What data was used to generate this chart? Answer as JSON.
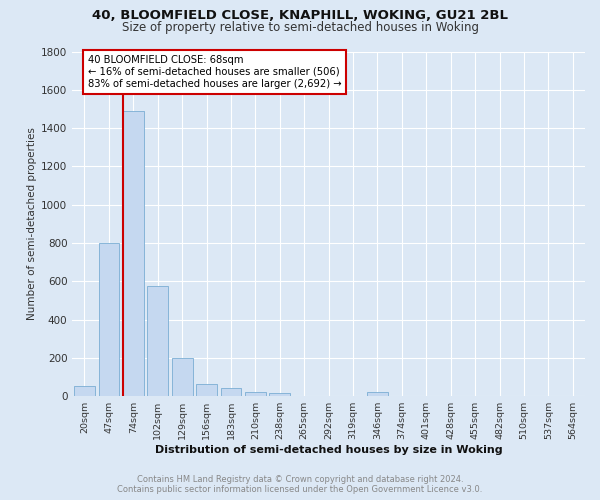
{
  "title1": "40, BLOOMFIELD CLOSE, KNAPHILL, WOKING, GU21 2BL",
  "title2": "Size of property relative to semi-detached houses in Woking",
  "xlabel": "Distribution of semi-detached houses by size in Woking",
  "ylabel": "Number of semi-detached properties",
  "bar_labels": [
    "20sqm",
    "47sqm",
    "74sqm",
    "102sqm",
    "129sqm",
    "156sqm",
    "183sqm",
    "210sqm",
    "238sqm",
    "265sqm",
    "292sqm",
    "319sqm",
    "346sqm",
    "374sqm",
    "401sqm",
    "428sqm",
    "455sqm",
    "482sqm",
    "510sqm",
    "537sqm",
    "564sqm"
  ],
  "bar_values": [
    55,
    800,
    1490,
    575,
    197,
    63,
    42,
    22,
    15,
    0,
    0,
    0,
    20,
    0,
    0,
    0,
    0,
    0,
    0,
    0,
    0
  ],
  "bar_color": "#c5d8f0",
  "bar_edge_color": "#7aadd4",
  "ylim": [
    0,
    1800
  ],
  "yticks": [
    0,
    200,
    400,
    600,
    800,
    1000,
    1200,
    1400,
    1600,
    1800
  ],
  "property_line_label": "40 BLOOMFIELD CLOSE: 68sqm",
  "annotation_line1": "← 16% of semi-detached houses are smaller (506)",
  "annotation_line2": "83% of semi-detached houses are larger (2,692) →",
  "line_color": "#cc0000",
  "footer_line1": "Contains HM Land Registry data © Crown copyright and database right 2024.",
  "footer_line2": "Contains public sector information licensed under the Open Government Licence v3.0.",
  "bg_color": "#dce8f5",
  "grid_color": "#ffffff"
}
